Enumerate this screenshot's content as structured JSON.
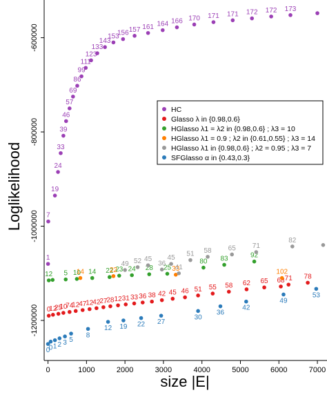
{
  "chart_data": {
    "type": "scatter",
    "title": "",
    "xlabel": "size |E|",
    "ylabel": "Loglikelihood",
    "xlim": [
      -100,
      7250
    ],
    "ylim": [
      -1285000,
      -520000
    ],
    "x_ticks": [
      0,
      1000,
      2000,
      3000,
      4000,
      5000,
      6000,
      7000
    ],
    "y_ticks": [
      -1200000,
      -1000000,
      -800000,
      -600000
    ],
    "x_tick_labels": [
      "0",
      "1000",
      "2000",
      "3000",
      "4000",
      "5000",
      "6000",
      "7000"
    ],
    "y_tick_labels": [
      "-1200000",
      "-1000000",
      "-800000",
      "-600000"
    ],
    "legend_position": "center-right",
    "series": [
      {
        "name": "HC",
        "color": "#9b3fb5",
        "points": [
          {
            "x": 1,
            "y": -1080000,
            "label": "1"
          },
          {
            "x": 7,
            "y": -990000,
            "label": "7"
          },
          {
            "x": 180,
            "y": -935000,
            "label": "19"
          },
          {
            "x": 260,
            "y": -885000,
            "label": "24"
          },
          {
            "x": 330,
            "y": -845000,
            "label": "33"
          },
          {
            "x": 400,
            "y": -808000,
            "label": "39"
          },
          {
            "x": 470,
            "y": -777000,
            "label": "46"
          },
          {
            "x": 560,
            "y": -750000,
            "label": "57"
          },
          {
            "x": 650,
            "y": -725000,
            "label": "69"
          },
          {
            "x": 760,
            "y": -702000,
            "label": "86"
          },
          {
            "x": 870,
            "y": -682000,
            "label": "99"
          },
          {
            "x": 980,
            "y": -664000,
            "label": "111"
          },
          {
            "x": 1120,
            "y": -648000,
            "label": "123"
          },
          {
            "x": 1280,
            "y": -633000,
            "label": "133"
          },
          {
            "x": 1480,
            "y": -620000,
            "label": "143"
          },
          {
            "x": 1700,
            "y": -610000,
            "label": "153"
          },
          {
            "x": 1950,
            "y": -603000,
            "label": "156"
          },
          {
            "x": 2250,
            "y": -596000,
            "label": "157"
          },
          {
            "x": 2600,
            "y": -590000,
            "label": "161"
          },
          {
            "x": 2980,
            "y": -584000,
            "label": "164"
          },
          {
            "x": 3350,
            "y": -578000,
            "label": "166"
          },
          {
            "x": 3800,
            "y": -572000,
            "label": "170"
          },
          {
            "x": 4300,
            "y": -567000,
            "label": "171"
          },
          {
            "x": 4800,
            "y": -563000,
            "label": "171"
          },
          {
            "x": 5300,
            "y": -559000,
            "label": "172"
          },
          {
            "x": 5800,
            "y": -555000,
            "label": "172"
          },
          {
            "x": 6300,
            "y": -552000,
            "label": "173"
          },
          {
            "x": 7000,
            "y": -548000,
            "label": ""
          }
        ]
      },
      {
        "name": "Glasso λ in {0.98,0.6}",
        "color": "#e31a1c",
        "points": [
          {
            "x": 20,
            "y": -1190000,
            "label": "0"
          },
          {
            "x": 130,
            "y": -1188000,
            "label": "12"
          },
          {
            "x": 270,
            "y": -1186000,
            "label": "25"
          },
          {
            "x": 400,
            "y": -1184000,
            "label": "10"
          },
          {
            "x": 560,
            "y": -1182000,
            "label": "74"
          },
          {
            "x": 720,
            "y": -1180000,
            "label": "12"
          },
          {
            "x": 900,
            "y": -1178000,
            "label": "47"
          },
          {
            "x": 1080,
            "y": -1176000,
            "label": "12"
          },
          {
            "x": 1260,
            "y": -1174000,
            "label": "42"
          },
          {
            "x": 1440,
            "y": -1172000,
            "label": "27"
          },
          {
            "x": 1620,
            "y": -1170000,
            "label": "28"
          },
          {
            "x": 1820,
            "y": -1168000,
            "label": "12"
          },
          {
            "x": 2020,
            "y": -1166000,
            "label": "31"
          },
          {
            "x": 2240,
            "y": -1164000,
            "label": "33"
          },
          {
            "x": 2460,
            "y": -1162000,
            "label": "36"
          },
          {
            "x": 2700,
            "y": -1160000,
            "label": "38"
          },
          {
            "x": 2960,
            "y": -1157000,
            "label": "42"
          },
          {
            "x": 3240,
            "y": -1154000,
            "label": "45"
          },
          {
            "x": 3560,
            "y": -1151000,
            "label": "46"
          },
          {
            "x": 3900,
            "y": -1147000,
            "label": "51"
          },
          {
            "x": 4280,
            "y": -1143000,
            "label": "55"
          },
          {
            "x": 4700,
            "y": -1139000,
            "label": "58"
          },
          {
            "x": 5160,
            "y": -1134000,
            "label": "62"
          },
          {
            "x": 5620,
            "y": -1130000,
            "label": "65"
          },
          {
            "x": 6050,
            "y": -1128000,
            "label": "68"
          },
          {
            "x": 6250,
            "y": -1124000,
            "label": "71"
          },
          {
            "x": 6750,
            "y": -1120000,
            "label": "78"
          }
        ]
      },
      {
        "name": "HGlasso λ1 = λ2 in {0.98,0.6} ; λ3 = 10",
        "color": "#33a02c",
        "points": [
          {
            "x": 20,
            "y": -1115000,
            "label": "12"
          },
          {
            "x": 120,
            "y": -1114000,
            "label": ""
          },
          {
            "x": 460,
            "y": -1113000,
            "label": "5"
          },
          {
            "x": 750,
            "y": -1112000,
            "label": "10"
          },
          {
            "x": 1150,
            "y": -1110000,
            "label": "14"
          },
          {
            "x": 1600,
            "y": -1108000,
            "label": "22"
          },
          {
            "x": 1850,
            "y": -1105000,
            "label": "23"
          },
          {
            "x": 2180,
            "y": -1104000,
            "label": "24"
          },
          {
            "x": 2630,
            "y": -1102000,
            "label": "28"
          },
          {
            "x": 3100,
            "y": -1101000,
            "label": "25"
          },
          {
            "x": 4040,
            "y": -1088000,
            "label": "80"
          },
          {
            "x": 4580,
            "y": -1082000,
            "label": "83"
          },
          {
            "x": 5360,
            "y": -1075000,
            "label": "92"
          }
        ]
      },
      {
        "name": "HGlasso λ1 = 0.9 ; λ2 in {0.61,0.55} ; λ3 = 14",
        "color": "#ff7f00",
        "points": [
          {
            "x": 840,
            "y": -1110000,
            "label": "14"
          },
          {
            "x": 1700,
            "y": -1106000,
            "label": "22"
          },
          {
            "x": 3320,
            "y": -1103000,
            "label": "33"
          },
          {
            "x": 6080,
            "y": -1110000,
            "label": "102"
          }
        ]
      },
      {
        "name": "HGlasso λ1 in {0.98,0.6} ; λ2 = 0.95 ; λ3 = 7",
        "color": "#999999",
        "points": [
          {
            "x": 2000,
            "y": -1093000,
            "label": "49"
          },
          {
            "x": 2330,
            "y": -1087000,
            "label": "52"
          },
          {
            "x": 2600,
            "y": -1083000,
            "label": "45"
          },
          {
            "x": 2960,
            "y": -1092000,
            "label": "36"
          },
          {
            "x": 3200,
            "y": -1080000,
            "label": "45"
          },
          {
            "x": 3400,
            "y": -1100000,
            "label": "41"
          },
          {
            "x": 3700,
            "y": -1072000,
            "label": "51"
          },
          {
            "x": 4150,
            "y": -1065000,
            "label": "58"
          },
          {
            "x": 4780,
            "y": -1060000,
            "label": "65"
          },
          {
            "x": 5410,
            "y": -1055000,
            "label": "71"
          },
          {
            "x": 6350,
            "y": -1043000,
            "label": "82"
          },
          {
            "x": 7150,
            "y": -1040000,
            "label": ""
          }
        ]
      },
      {
        "name": "SFGlasso α in {0.43,0.3}",
        "color": "#2b7bba",
        "points": [
          {
            "x": 0,
            "y": -1250000,
            "label": "0"
          },
          {
            "x": 70,
            "y": -1245000,
            "label": "0"
          },
          {
            "x": 180,
            "y": -1242000,
            "label": "1"
          },
          {
            "x": 300,
            "y": -1238000,
            "label": "2"
          },
          {
            "x": 440,
            "y": -1234000,
            "label": "3"
          },
          {
            "x": 600,
            "y": -1228000,
            "label": "5"
          },
          {
            "x": 1040,
            "y": -1218000,
            "label": "8"
          },
          {
            "x": 1560,
            "y": -1203000,
            "label": "12"
          },
          {
            "x": 1960,
            "y": -1200000,
            "label": "19"
          },
          {
            "x": 2420,
            "y": -1195000,
            "label": "22"
          },
          {
            "x": 2940,
            "y": -1190000,
            "label": "27"
          },
          {
            "x": 3900,
            "y": -1180000,
            "label": "30"
          },
          {
            "x": 4480,
            "y": -1170000,
            "label": "36"
          },
          {
            "x": 5150,
            "y": -1160000,
            "label": "42"
          },
          {
            "x": 6120,
            "y": -1145000,
            "label": "49"
          },
          {
            "x": 6970,
            "y": -1133000,
            "label": "53"
          }
        ]
      }
    ]
  }
}
